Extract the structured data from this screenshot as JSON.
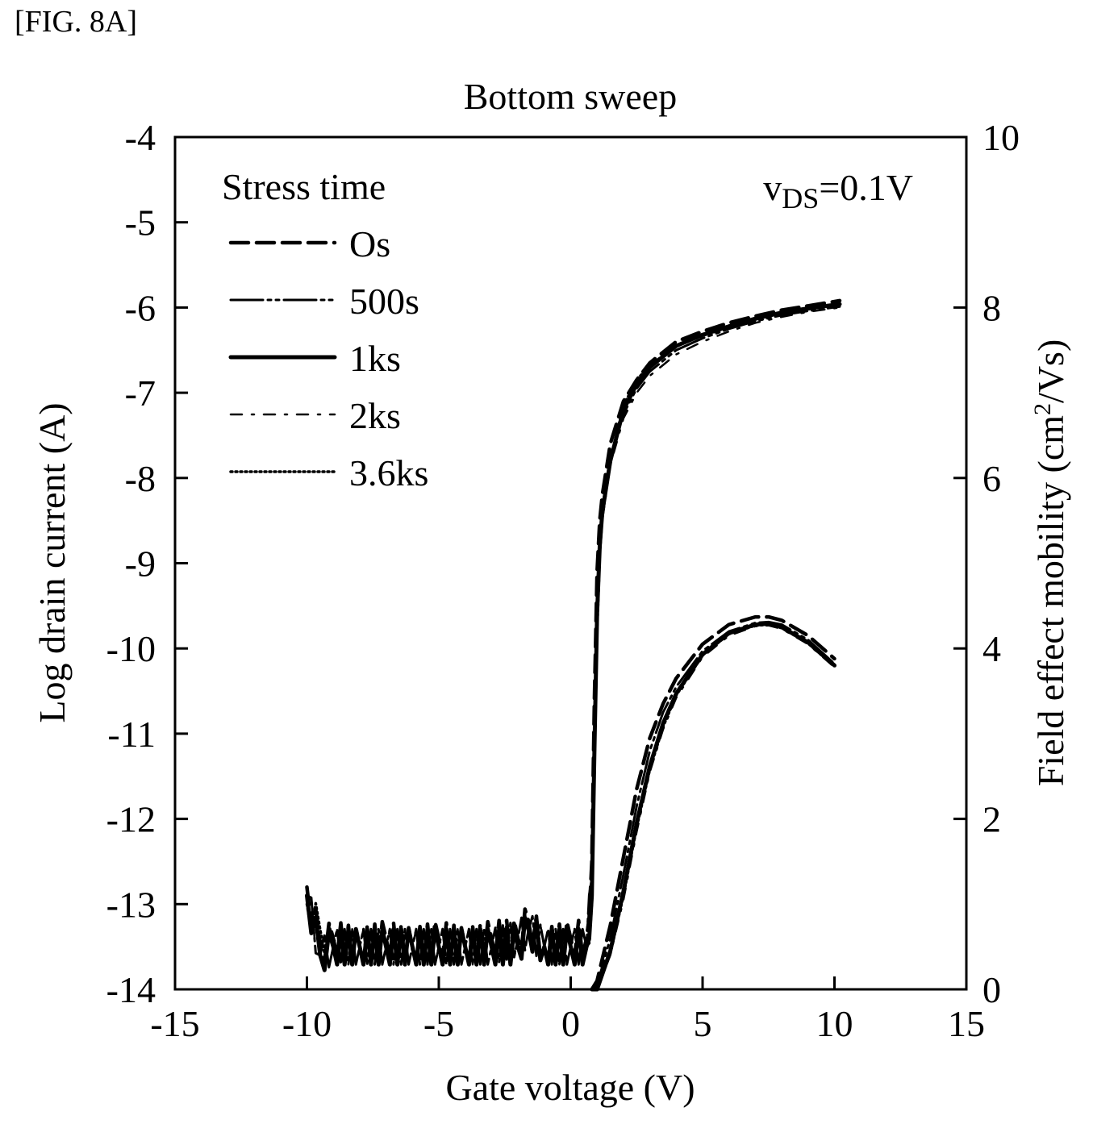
{
  "figure_label": "[FIG. 8A]",
  "chart_data": {
    "type": "line",
    "title": "Bottom sweep",
    "xlabel": "Gate voltage (V)",
    "ylabel": "Log drain current (A)",
    "y2label_main": "Field effect mobility (cm",
    "y2label_sup": "2",
    "y2label_tail": "/Vs)",
    "xlim": [
      -15,
      15
    ],
    "ylim": [
      -14,
      -4
    ],
    "y2lim": [
      0,
      10
    ],
    "xticks": [
      -15,
      -10,
      -5,
      0,
      5,
      10,
      15
    ],
    "yticks": [
      -4,
      -5,
      -6,
      -7,
      -8,
      -9,
      -10,
      -11,
      -12,
      -13,
      -14
    ],
    "y2ticks": [
      10,
      8,
      6,
      4,
      2,
      0
    ],
    "xtick_labels": [
      "-15",
      "-10",
      "-5",
      "0",
      "5",
      "10",
      "15"
    ],
    "ytick_labels": [
      "-4",
      "-5",
      "-6",
      "-7",
      "-8",
      "-9",
      "-10",
      "-11",
      "-12",
      "-13",
      "-14"
    ],
    "y2tick_labels": [
      "10",
      "8",
      "6",
      "4",
      "2",
      "0"
    ],
    "grid": false,
    "annotation": {
      "prefix": "v",
      "sub": "DS",
      "suffix": "=0.1V",
      "position": "top-right"
    },
    "legend": {
      "title": "Stress time",
      "placement": "top-left",
      "entries": [
        {
          "label": "Os",
          "style": "dashed"
        },
        {
          "label": "500s",
          "style": "long-dash-dot-dot"
        },
        {
          "label": "1ks",
          "style": "solid-thick"
        },
        {
          "label": "2ks",
          "style": "dash-dot-thin"
        },
        {
          "label": "3.6ks",
          "style": "dotted"
        }
      ]
    },
    "series": [
      {
        "name": "Os",
        "axis": "left",
        "quantity": "log_drain_current",
        "x": [
          -10,
          -9.5,
          -9,
          -8,
          -7,
          -6,
          -5,
          -4,
          -3,
          -2,
          -1.6,
          -1,
          0,
          0.6,
          0.8,
          0.9,
          1.0,
          1.1,
          1.2,
          1.5,
          2,
          2.5,
          3,
          4,
          5,
          6,
          7,
          8,
          9,
          10.2
        ],
        "y": [
          -12.8,
          -13.5,
          -13.4,
          -13.5,
          -13.4,
          -13.5,
          -13.4,
          -13.5,
          -13.4,
          -13.4,
          -13.2,
          -13.5,
          -13.4,
          -13.4,
          -12.5,
          -10.6,
          -9.1,
          -8.5,
          -8.2,
          -7.6,
          -7.1,
          -6.85,
          -6.65,
          -6.4,
          -6.28,
          -6.18,
          -6.1,
          -6.03,
          -5.98,
          -5.92
        ]
      },
      {
        "name": "500s",
        "axis": "left",
        "quantity": "log_drain_current",
        "x": [
          -10,
          -9.5,
          -9,
          -8,
          -7,
          -6,
          -5,
          -4,
          -3,
          -2,
          -1.6,
          -1,
          0,
          0.6,
          0.8,
          0.9,
          1.0,
          1.1,
          1.2,
          1.5,
          2,
          2.5,
          3,
          4,
          5,
          6,
          7,
          8,
          9,
          10.2
        ],
        "y": [
          -12.9,
          -13.6,
          -13.5,
          -13.5,
          -13.5,
          -13.5,
          -13.5,
          -13.5,
          -13.5,
          -13.4,
          -13.3,
          -13.5,
          -13.5,
          -13.5,
          -12.7,
          -10.9,
          -9.4,
          -8.7,
          -8.35,
          -7.75,
          -7.25,
          -6.95,
          -6.75,
          -6.5,
          -6.36,
          -6.25,
          -6.16,
          -6.09,
          -6.04,
          -5.99
        ]
      },
      {
        "name": "1ks",
        "axis": "left",
        "quantity": "log_drain_current",
        "x": [
          -10,
          -9.5,
          -9,
          -8,
          -7,
          -6,
          -5,
          -4,
          -3,
          -2,
          -1.6,
          -1,
          0,
          0.6,
          0.8,
          0.9,
          1.0,
          1.1,
          1.2,
          1.5,
          2,
          2.5,
          3,
          4,
          5,
          6,
          7,
          8,
          9,
          10.2
        ],
        "y": [
          -12.9,
          -13.6,
          -13.5,
          -13.5,
          -13.5,
          -13.5,
          -13.5,
          -13.5,
          -13.5,
          -13.5,
          -13.3,
          -13.5,
          -13.5,
          -13.5,
          -12.9,
          -11.2,
          -9.6,
          -8.8,
          -8.4,
          -7.8,
          -7.2,
          -6.9,
          -6.7,
          -6.45,
          -6.32,
          -6.22,
          -6.13,
          -6.06,
          -6.01,
          -5.96
        ]
      },
      {
        "name": "2ks",
        "axis": "left",
        "quantity": "log_drain_current",
        "x": [
          -10,
          -9.5,
          -9,
          -8,
          -7,
          -6,
          -5,
          -4,
          -3,
          -2,
          -1.6,
          -1,
          0,
          0.6,
          0.8,
          0.9,
          1.0,
          1.1,
          1.2,
          1.5,
          2,
          2.5,
          3,
          4,
          5,
          6,
          7,
          8,
          9,
          10.2
        ],
        "y": [
          -12.9,
          -13.6,
          -13.5,
          -13.5,
          -13.5,
          -13.5,
          -13.5,
          -13.5,
          -13.5,
          -13.4,
          -13.3,
          -13.5,
          -13.5,
          -13.5,
          -12.9,
          -11.3,
          -9.7,
          -8.9,
          -8.5,
          -7.85,
          -7.3,
          -7.0,
          -6.8,
          -6.55,
          -6.4,
          -6.28,
          -6.18,
          -6.11,
          -6.05,
          -6.0
        ]
      },
      {
        "name": "3.6ks",
        "axis": "left",
        "quantity": "log_drain_current",
        "x": [
          -10,
          -9.5,
          -9,
          -8,
          -7,
          -6,
          -5,
          -4,
          -3,
          -2,
          -1.6,
          -1,
          0,
          0.6,
          0.8,
          0.9,
          1.0,
          1.1,
          1.2,
          1.5,
          2,
          2.5,
          3,
          4,
          5,
          6,
          7,
          8,
          9,
          10.2
        ],
        "y": [
          -13.0,
          -13.3,
          -13.5,
          -13.5,
          -13.5,
          -13.5,
          -13.5,
          -13.5,
          -13.5,
          -13.4,
          -13.3,
          -13.5,
          -13.5,
          -13.5,
          -13.0,
          -11.4,
          -9.8,
          -8.9,
          -8.45,
          -7.8,
          -7.15,
          -6.85,
          -6.68,
          -6.45,
          -6.33,
          -6.23,
          -6.14,
          -6.07,
          -6.02,
          -5.97
        ]
      },
      {
        "name": "Os",
        "axis": "right",
        "quantity": "field_effect_mobility",
        "x": [
          0.8,
          1.0,
          1.5,
          2.0,
          2.5,
          3.0,
          3.5,
          4.0,
          5.0,
          6.0,
          7.0,
          7.5,
          8.0,
          9.0,
          10.0
        ],
        "y": [
          0.0,
          0.1,
          0.75,
          1.55,
          2.35,
          2.95,
          3.35,
          3.65,
          4.05,
          4.28,
          4.37,
          4.37,
          4.33,
          4.15,
          3.88
        ]
      },
      {
        "name": "500s",
        "axis": "right",
        "quantity": "field_effect_mobility",
        "x": [
          0.8,
          1.0,
          1.5,
          2.0,
          2.5,
          3.0,
          3.5,
          4.0,
          5.0,
          6.0,
          7.0,
          7.5,
          8.0,
          9.0,
          10.0
        ],
        "y": [
          0.0,
          0.05,
          0.6,
          1.35,
          2.15,
          2.8,
          3.25,
          3.55,
          3.97,
          4.2,
          4.3,
          4.31,
          4.28,
          4.1,
          3.82
        ]
      },
      {
        "name": "1ks",
        "axis": "right",
        "quantity": "field_effect_mobility",
        "x": [
          0.8,
          1.0,
          1.5,
          2.0,
          2.5,
          3.0,
          3.5,
          4.0,
          5.0,
          6.0,
          7.0,
          7.5,
          8.0,
          9.0,
          10.0
        ],
        "y": [
          0.0,
          0.0,
          0.45,
          1.15,
          1.95,
          2.62,
          3.12,
          3.47,
          3.93,
          4.18,
          4.28,
          4.29,
          4.25,
          4.07,
          3.8
        ]
      },
      {
        "name": "2ks",
        "axis": "right",
        "quantity": "field_effect_mobility",
        "x": [
          0.8,
          1.0,
          1.5,
          2.0,
          2.5,
          3.0,
          3.5,
          4.0,
          5.0,
          6.0,
          7.0,
          7.5,
          8.0,
          9.0,
          10.0
        ],
        "y": [
          0.0,
          0.0,
          0.4,
          1.05,
          1.85,
          2.55,
          3.05,
          3.42,
          3.9,
          4.15,
          4.26,
          4.27,
          4.23,
          4.05,
          3.78
        ]
      },
      {
        "name": "3.6ks",
        "axis": "right",
        "quantity": "field_effect_mobility",
        "x": [
          0.8,
          1.0,
          1.5,
          2.0,
          2.5,
          3.0,
          3.5,
          4.0,
          5.0,
          6.0,
          7.0,
          7.5,
          8.0,
          9.0,
          10.0
        ],
        "y": [
          0.0,
          0.0,
          0.42,
          1.1,
          1.9,
          2.58,
          3.08,
          3.45,
          3.92,
          4.17,
          4.27,
          4.28,
          4.24,
          4.06,
          3.79
        ]
      }
    ]
  }
}
